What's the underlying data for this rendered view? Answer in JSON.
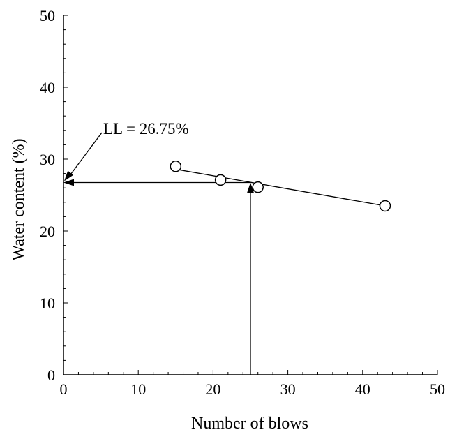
{
  "chart_data": {
    "type": "scatter",
    "xlabel": "Number of blows",
    "ylabel": "Water content (%)",
    "xlim": [
      0,
      50
    ],
    "ylim": [
      0,
      50
    ],
    "x_ticks": [
      0,
      10,
      20,
      30,
      40,
      50
    ],
    "y_ticks": [
      0,
      10,
      20,
      30,
      40,
      50
    ],
    "x_tick_labels": [
      "0",
      "10",
      "20",
      "30",
      "40",
      "50"
    ],
    "y_tick_labels": [
      "0",
      "10",
      "20",
      "30",
      "40",
      "50"
    ],
    "grid": false,
    "points": [
      {
        "x": 15,
        "y": 29.0
      },
      {
        "x": 21,
        "y": 27.1
      },
      {
        "x": 26,
        "y": 26.1
      },
      {
        "x": 43,
        "y": 23.5
      }
    ],
    "trend_line": {
      "x": [
        15,
        43
      ],
      "y": [
        28.6,
        23.5
      ]
    },
    "liquid_limit": {
      "blows": 25,
      "water_content": 26.75
    },
    "annotation": "LL = 26.75%"
  },
  "colors": {
    "line": "#000000",
    "background": "#ffffff"
  }
}
